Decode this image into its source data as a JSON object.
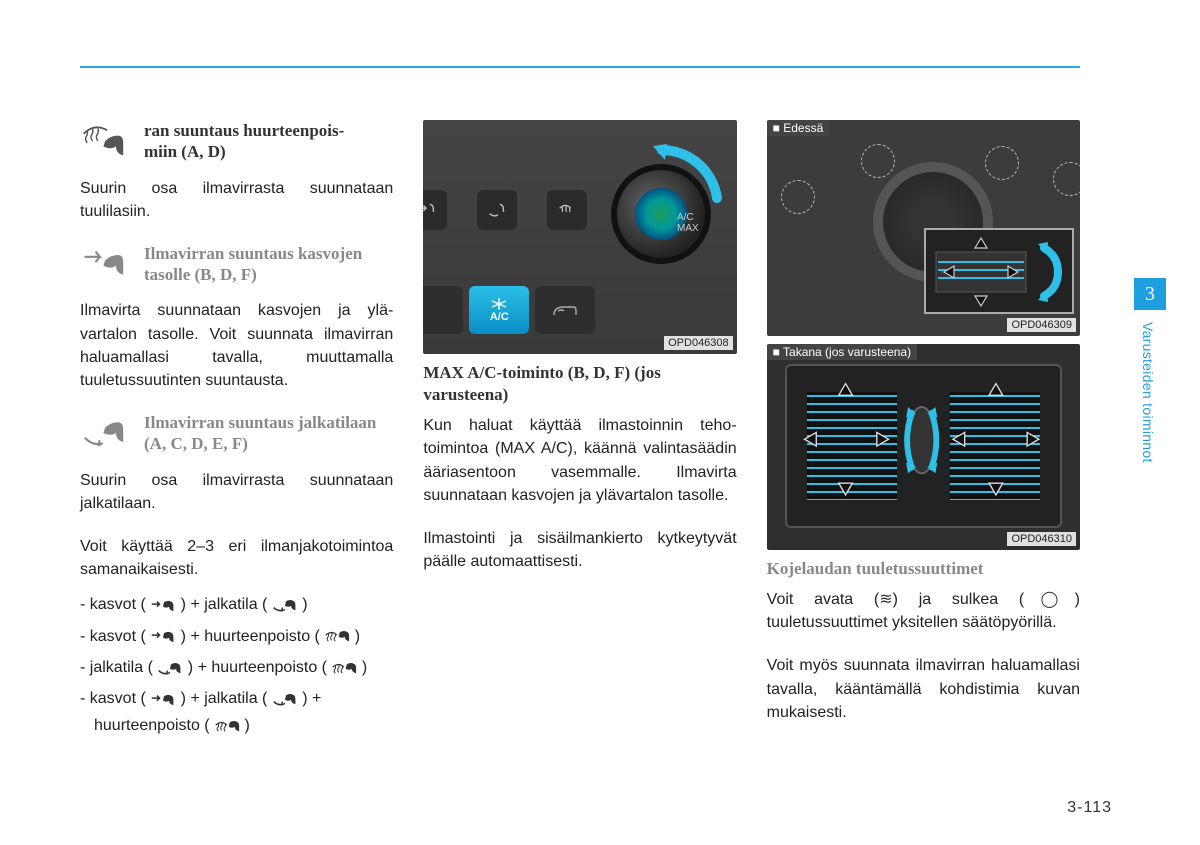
{
  "accent_color": "#1ea0e0",
  "chapter_tab": "3",
  "chapter_label": "Varusteiden toiminnot",
  "page_number": "3-113",
  "col1": {
    "s1_title": "ran suuntaus huurteenpois-\nmiin (A, D)",
    "s1_body": "Suurin osa ilmavirrasta suunnataan tuulilasiin.",
    "s2_title": "Ilmavirran suuntaus kasvojen tasolle (B, D, F)",
    "s2_body": "Ilmavirta suunnataan kasvojen ja ylä-vartalon tasolle. Voit suunnata ilmavirran haluamallasi tavalla, muuttamalla tuuletussuutinten suuntausta.",
    "s3_title": "Ilmavirran suuntaus jalkatilaan (A, C, D, E, F)",
    "s3_body": "Suurin osa ilmavirrasta suunnataan jalkatilaan.",
    "combo_intro": "Voit käyttää 2–3 eri ilmanjakotoimintoa samanaikaisesti.",
    "combos": [
      {
        "parts": [
          "kasvot",
          "jalkatila"
        ],
        "icons": [
          "face",
          "floor"
        ]
      },
      {
        "parts": [
          "kasvot",
          "huurteenpoisto"
        ],
        "icons": [
          "face",
          "defrost"
        ]
      },
      {
        "parts": [
          "jalkatila",
          "huurteenpoisto"
        ],
        "icons": [
          "floor",
          "defrost"
        ]
      },
      {
        "parts": [
          "kasvot",
          "jalkatila",
          "huurteenpoisto"
        ],
        "icons": [
          "face",
          "floor",
          "defrost"
        ]
      }
    ]
  },
  "col2": {
    "fig1_code": "OPD046308",
    "fig1_ac_label": "A/C",
    "fig1_dial_label": "A/C\nMAX",
    "title": "MAX A/C-toiminto (B, D, F) (jos varusteena)",
    "body1": "Kun haluat käyttää ilmastoinnin teho-toimintoa (MAX A/C), käännä valintasäädin ääriasentoon vasemmalle. Ilmavirta suunnataan kasvojen ja ylävartalon tasolle.",
    "body2": "Ilmastointi ja sisäilmankierto kytkeytyvät päälle automaattisesti."
  },
  "col3": {
    "front_label": "■ Edessä",
    "rear_label": "■ Takana (jos varusteena)",
    "fig_front_code": "OPD046309",
    "fig_rear_code": "OPD046310",
    "title": "Kojelaudan tuuletussuuttimet",
    "body1_pre": "Voit avata (",
    "open_sym": "≋",
    "body1_mid": ") ja sulkea (",
    "close_sym": "◯",
    "body1_post": ") tuuletussuuttimet yksitellen säätöpyörillä.",
    "body2": "Voit myös suunnata ilmavirran haluamallasi tavalla, kääntämällä kohdistimia kuvan mukaisesti."
  }
}
